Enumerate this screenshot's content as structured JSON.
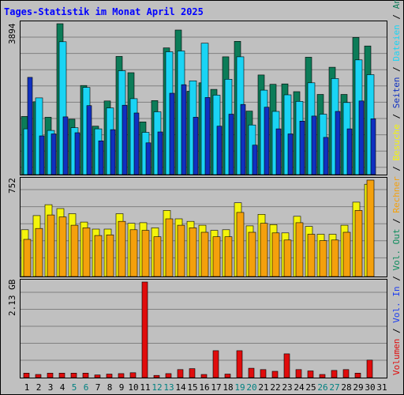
{
  "chart_data": {
    "type": "bar",
    "title": "Tages-Statistik im Monat April 2025",
    "colors": {
      "background": "#c0c0c0",
      "title": "#0000ff",
      "anfragen": "#0c7c58",
      "dateien": "#1ad4f4",
      "seiten": "#1030c0",
      "besuche": "#f4f40c",
      "rechner": "#f4a00c",
      "vol_in": "#1c3cf0",
      "vol_out": "#0c8c5c",
      "volumen": "#e00c0c",
      "weekend": "#008080",
      "weekday": "#000000"
    },
    "categories": [
      "1",
      "2",
      "3",
      "4",
      "5",
      "6",
      "7",
      "8",
      "9",
      "10",
      "11",
      "12",
      "13",
      "14",
      "15",
      "16",
      "17",
      "18",
      "19",
      "20",
      "21",
      "22",
      "23",
      "24",
      "25",
      "26",
      "27",
      "28",
      "29",
      "30",
      "31"
    ],
    "weekend_days": [
      "5",
      "6",
      "12",
      "13",
      "19",
      "20",
      "26",
      "27"
    ],
    "panels": {
      "hits": {
        "ymax": 3894,
        "ymax_label": "3894",
        "series": [
          {
            "name": "Anfragen",
            "color": "#0c7c58",
            "values": [
              1500,
              1880,
              1480,
              3900,
              1430,
              2300,
              1250,
              1900,
              3050,
              2630,
              1360,
              1910,
              3270,
              3730,
              2150,
              2370,
              2200,
              3040,
              3440,
              1640,
              2570,
              2330,
              2340,
              2140,
              3030,
              2070,
              2770,
              2070,
              3540,
              3320,
              null
            ]
          },
          {
            "name": "Dateien",
            "color": "#1ad4f4",
            "values": [
              1180,
              1980,
              1140,
              3430,
              1210,
              2250,
              1180,
              1720,
              2680,
              1960,
              1090,
              1620,
              3170,
              3190,
              2420,
              3390,
              2050,
              2460,
              3040,
              1280,
              2180,
              1630,
              2060,
              1890,
              2370,
              1560,
              2480,
              1860,
              2960,
              2580,
              null
            ]
          },
          {
            "name": "Seiten",
            "color": "#1030c0",
            "values": [
              2510,
              1000,
              1050,
              1490,
              1080,
              1780,
              870,
              1160,
              1790,
              1590,
              820,
              1100,
              2100,
              2320,
              1480,
              1990,
              1250,
              1560,
              1810,
              760,
              1740,
              1180,
              1050,
              1380,
              1510,
              960,
              1630,
              1180,
              1900,
              1440,
              null
            ]
          }
        ]
      },
      "visits": {
        "ymax": 752,
        "ymax_label": "752",
        "series": [
          {
            "name": "Besuche",
            "color": "#f4f40c",
            "values": [
              365,
              475,
              560,
              530,
              490,
              425,
              370,
              370,
              490,
              415,
              420,
              380,
              515,
              450,
              430,
              400,
              360,
              365,
              575,
              395,
              485,
              405,
              340,
              470,
              390,
              330,
              330,
              400,
              580,
              720,
              null
            ]
          },
          {
            "name": "Rechner",
            "color": "#f4a00c",
            "values": [
              290,
              375,
              480,
              465,
              400,
              380,
              320,
              325,
              430,
              365,
              360,
              310,
              450,
              400,
              380,
              345,
              310,
              310,
              500,
              345,
              415,
              340,
              285,
              420,
              330,
              280,
              285,
              345,
              515,
              760,
              null
            ]
          }
        ]
      },
      "volume": {
        "ymax": 2.13,
        "ymax_label": "2.13 GB",
        "series": [
          {
            "name": "Volumen",
            "color": "#e00c0c",
            "values": [
              0.1,
              0.07,
              0.1,
              0.1,
              0.1,
              0.1,
              0.06,
              0.08,
              0.09,
              0.11,
              2.13,
              0.05,
              0.09,
              0.18,
              0.2,
              0.07,
              0.6,
              0.08,
              0.6,
              0.21,
              0.18,
              0.14,
              0.53,
              0.18,
              0.15,
              0.07,
              0.16,
              0.18,
              0.1,
              0.39,
              null
            ]
          }
        ]
      }
    },
    "legend": [
      {
        "text": "Anfragen",
        "color": "#0c7c58"
      },
      {
        "text": "Dateien",
        "color": "#1ad4f4"
      },
      {
        "text": "Seiten",
        "color": "#1030c0"
      },
      {
        "text": "Besuche",
        "color": "#f4f40c"
      },
      {
        "text": "Rechner",
        "color": "#f4a00c"
      },
      {
        "text": "Vol. Out",
        "color": "#0c8c5c"
      },
      {
        "text": "Vol. In",
        "color": "#1c3cf0"
      },
      {
        "text": "Volumen",
        "color": "#e00c0c"
      }
    ],
    "legend_separator": " / ",
    "legend_position": "right, vertical"
  }
}
